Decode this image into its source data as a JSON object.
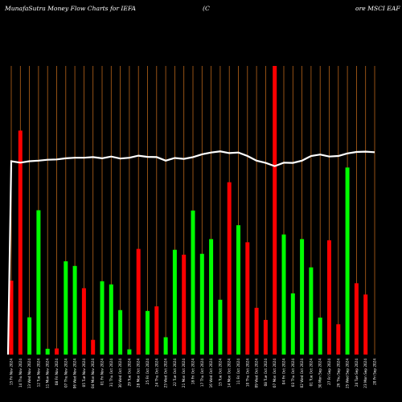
{
  "chart_data": {
    "type": "bar",
    "title_left": "MunafaSutra  Money Flow  Charts for IEFA",
    "title_mid": "(C",
    "title_right": "ore  MSCI EAF",
    "colors": {
      "background": "#000000",
      "grid": "#b8641a",
      "up": "#00ff00",
      "down": "#ff0000",
      "line": "#ffffff",
      "text": "#ffffff"
    },
    "ylim": [
      0,
      100
    ],
    "categories": [
      "15 Fri Nov 2024",
      "14 Thu Nov 2024",
      "13 Wed Nov 2024",
      "12 Tue Nov 2024",
      "11 Mon Nov 2024",
      "08 Fri Nov 2024",
      "07 Thu Nov 2024",
      "06 Wed Nov 2024",
      "05 Tue Nov 2024",
      "04 Mon Nov 2024",
      "01 Fri Nov 2024",
      "31 Thu Oct 2024",
      "30 Wed Oct 2024",
      "29 Tue Oct 2024",
      "28 Mon Oct 2024",
      "25 Fri Oct 2024",
      "24 Thu Oct 2024",
      "23 Wed Oct 2024",
      "22 Tue Oct 2024",
      "21 Mon Oct 2024",
      "18 Fri Oct 2024",
      "17 Thu Oct 2024",
      "16 Wed Oct 2024",
      "15 Tue Oct 2024",
      "14 Mon Oct 2024",
      "11 Fri Oct 2024",
      "10 Thu Oct 2024",
      "09 Wed Oct 2024",
      "08 Tue Oct 2024",
      "07 Mon Oct 2024",
      "04 Fri Oct 2024",
      "03 Thu Oct 2024",
      "02 Wed Oct 2024",
      "01 Tue Oct 2024",
      "30 Mon Sep 2024",
      "27 Fri Sep 2024",
      "26 Thu Sep 2024",
      "25 Wed Sep 2024",
      "24 Tue Sep 2024",
      "23 Mon Sep 2024",
      "20 Fri Sep 2024"
    ],
    "values": [
      25.6,
      77.6,
      12.9,
      50.0,
      2.0,
      2.1,
      32.3,
      30.7,
      23.0,
      5.1,
      25.4,
      24.3,
      15.4,
      1.8,
      36.6,
      15.1,
      16.7,
      6.0,
      36.3,
      34.6,
      49.9,
      34.9,
      40.0,
      19.0,
      59.7,
      44.8,
      38.9,
      16.2,
      12.0,
      100.0,
      41.6,
      21.2,
      40.0,
      30.2,
      12.8,
      39.6,
      10.5,
      64.8,
      24.7,
      20.8,
      0
    ],
    "directions": [
      "down",
      "down",
      "up",
      "up",
      "up",
      "down",
      "up",
      "up",
      "down",
      "down",
      "up",
      "up",
      "up",
      "up",
      "down",
      "up",
      "down",
      "up",
      "up",
      "down",
      "up",
      "up",
      "up",
      "up",
      "down",
      "up",
      "down",
      "down",
      "down",
      "down",
      "up",
      "up",
      "up",
      "up",
      "up",
      "down",
      "down",
      "up",
      "down",
      "down",
      "down"
    ],
    "line": [
      67.0,
      66.5,
      67.0,
      67.2,
      67.5,
      67.6,
      68.0,
      68.2,
      68.2,
      68.4,
      68.0,
      68.6,
      67.9,
      68.2,
      68.9,
      68.5,
      68.4,
      67.2,
      68.1,
      67.8,
      68.4,
      69.4,
      70.0,
      70.4,
      69.8,
      70.0,
      68.8,
      67.2,
      66.4,
      65.3,
      66.5,
      66.4,
      67.2,
      68.8,
      69.3,
      68.6,
      68.8,
      69.7,
      70.2,
      70.3,
      70.1
    ]
  }
}
